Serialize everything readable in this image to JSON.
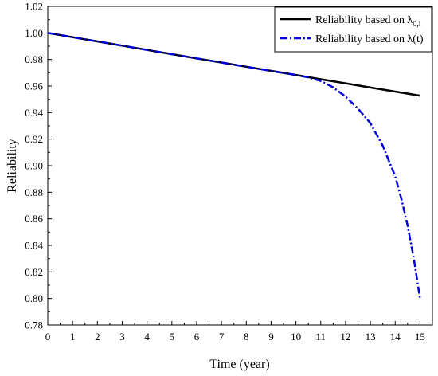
{
  "chart_data": {
    "type": "line",
    "xlabel": "Time (year)",
    "ylabel": "Reliability",
    "xlim": [
      0,
      15.5
    ],
    "ylim": [
      0.78,
      1.02
    ],
    "xticks": [
      0,
      1,
      2,
      3,
      4,
      5,
      6,
      7,
      8,
      9,
      10,
      11,
      12,
      13,
      14,
      15
    ],
    "yticks": [
      "0.78",
      "0.80",
      "0.82",
      "0.84",
      "0.86",
      "0.88",
      "0.90",
      "0.92",
      "0.94",
      "0.96",
      "0.98",
      "1.00",
      "1.02"
    ],
    "grid": false,
    "legend_position": "top-right",
    "series": [
      {
        "name": "Reliability based on λ0,i",
        "legend": {
          "base": "Reliability based on λ",
          "sub": "0,i",
          "suffix": ""
        },
        "color": "#000000",
        "style": "solid",
        "x": [
          0,
          1,
          2,
          3,
          4,
          5,
          6,
          7,
          8,
          9,
          10,
          11,
          12,
          13,
          14,
          15
        ],
        "y": [
          1.0,
          0.9968,
          0.9936,
          0.9904,
          0.9872,
          0.984,
          0.9808,
          0.9777,
          0.9745,
          0.9714,
          0.9683,
          0.9651,
          0.962,
          0.9589,
          0.9558,
          0.9527
        ]
      },
      {
        "name": "Reliability based on λ(t)",
        "legend": {
          "base": "Reliability based on λ",
          "sub": "",
          "suffix": "(t)"
        },
        "color": "#0000dd",
        "style": "dashdot",
        "x": [
          0,
          1,
          2,
          3,
          4,
          5,
          6,
          7,
          8,
          9,
          10,
          10.5,
          11,
          11.5,
          12,
          12.5,
          13,
          13.5,
          14,
          14.25,
          14.5,
          14.75,
          15
        ],
        "y": [
          1.0,
          0.9968,
          0.9936,
          0.9904,
          0.9872,
          0.984,
          0.9808,
          0.9777,
          0.9745,
          0.9714,
          0.9683,
          0.9665,
          0.9638,
          0.959,
          0.952,
          0.943,
          0.932,
          0.915,
          0.892,
          0.875,
          0.855,
          0.83,
          0.8
        ]
      }
    ]
  }
}
